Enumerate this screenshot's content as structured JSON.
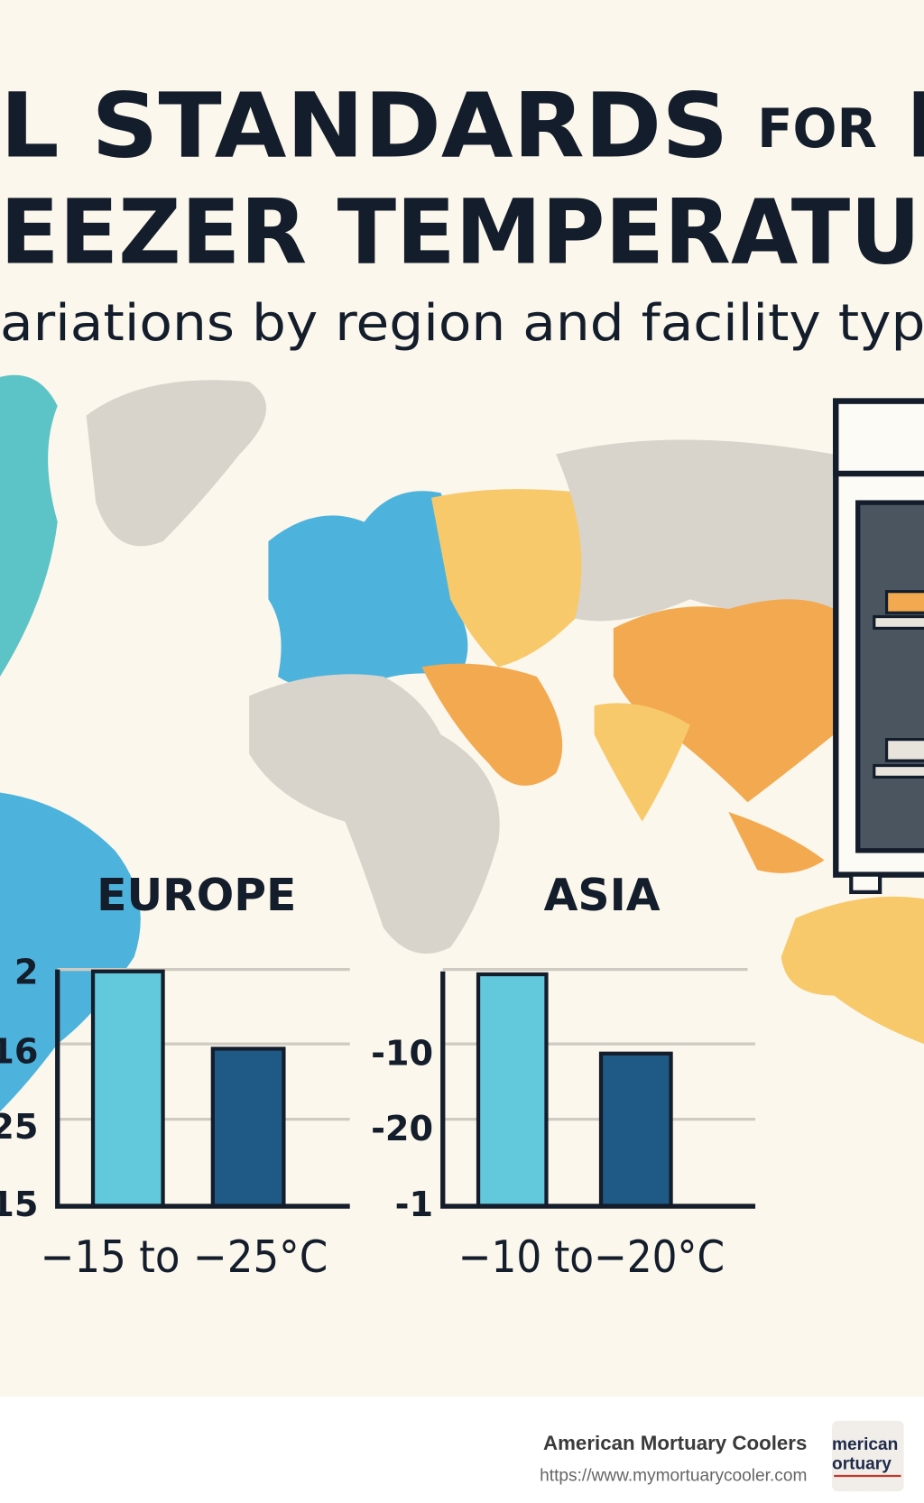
{
  "header": {
    "title_line1": "L STANDARDS",
    "title_for": "FOR",
    "title_cut": "M",
    "title_line2": "EEZER TEMPERATUR",
    "subtitle": "ariations by region and facility type"
  },
  "panels": [
    {
      "region": "EUROPE",
      "tick_labels": [
        "2",
        "16",
        "25",
        "15"
      ],
      "range": "−15 to  −25°C"
    },
    {
      "region": "ASIA",
      "tick_labels": [
        "-10",
        "-20",
        "-1"
      ],
      "range": "−10 to−20°C"
    }
  ],
  "footer": {
    "company": "American Mortuary Coolers",
    "url": "https://www.mymortuarycooler.com",
    "logo_line1": "merican",
    "logo_line2": "ortuary"
  }
}
